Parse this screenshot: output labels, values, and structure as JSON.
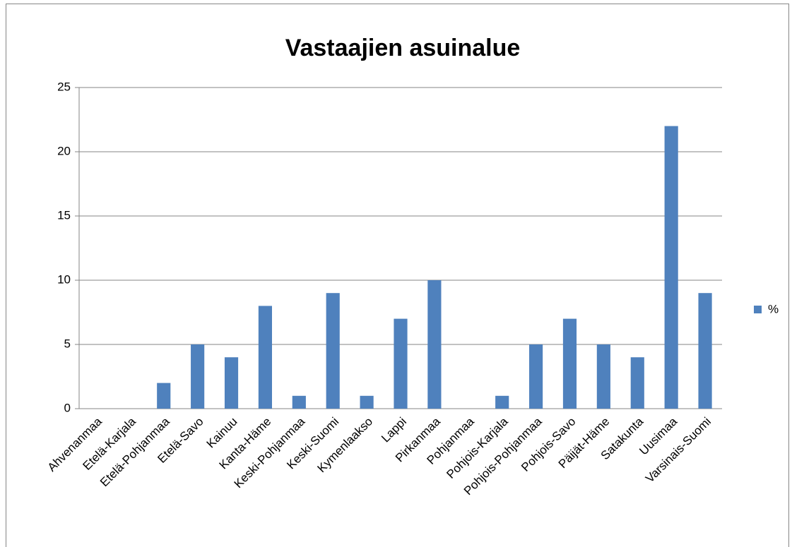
{
  "chart_data": {
    "type": "bar",
    "title": "Vastaajien asuinalue",
    "categories": [
      "Ahvenanmaa",
      "Etelä-Karjala",
      "Etelä-Pohjanmaa",
      "Etelä-Savo",
      "Kainuu",
      "Kanta-Häme",
      "Keski-Pohjanmaa",
      "Keski-Suomi",
      "Kymenlaakso",
      "Lappi",
      "Pirkanmaa",
      "Pohjanmaa",
      "Pohjois-Karjala",
      "Pohjois-Pohjanmaa",
      "Pohjois-Savo",
      "Päijät-Häme",
      "Satakunta",
      "Uusimaa",
      "Varsinais-Suomi"
    ],
    "series": [
      {
        "name": "%",
        "color": "#4f81bd",
        "values": [
          0,
          0,
          2,
          5,
          4,
          8,
          1,
          9,
          1,
          7,
          10,
          0,
          1,
          5,
          7,
          5,
          4,
          22,
          9
        ]
      }
    ],
    "ylim": [
      0,
      25
    ],
    "yticks": [
      0,
      5,
      10,
      15,
      20,
      25
    ],
    "grid": true,
    "legend": "right"
  }
}
